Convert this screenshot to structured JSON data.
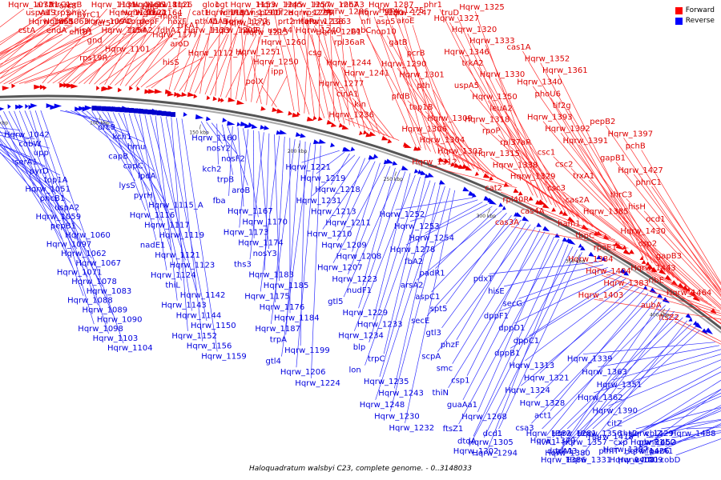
{
  "caption": "Haloquadratum walsbyi C23, complete genome. - 0..3148033",
  "legend": [
    {
      "label": "Forward",
      "color": "#ff0000"
    },
    {
      "label": "Reverse",
      "color": "#0000ff"
    }
  ],
  "ticks": [
    "50 kbp",
    "100 kbp",
    "150 kbp",
    "200 kbp",
    "250 kbp",
    "300 kbp",
    "350 kbp",
    "400 kbp",
    "450 kbp"
  ],
  "forward_labels": [
    "Hqrw_1073",
    "uspA1",
    "Hqrw_1063",
    "cstA",
    "arsA1",
    "trpS",
    "Hqrw_1065",
    "endA",
    "serB",
    "valS",
    "hisB",
    "hisA",
    "thrC1",
    "pheY",
    "Hqrw_1094",
    "orc8",
    "pyrC1",
    "fer5",
    "entB1",
    "gnd",
    "Hqrw_1101",
    "rps19R",
    "Hqrw_1131",
    "Hqrw_1130",
    "copA",
    "Hqrw_1154",
    "Hqrw_1166",
    "Hqrw_1164",
    "nirA2",
    "fdhA2",
    "Hqrw_1126",
    "Hqrw_1122",
    "pepF",
    "fdhA1",
    "Hqrw_1118",
    "truA",
    "hoxF",
    "bat",
    "moaE",
    "trkA1",
    "Hqrw_1177",
    "aroD",
    "Hqrw_1112_A",
    "hisS",
    "trp1",
    "cat1",
    "fbA1",
    "Hqrw_1133",
    "glo1",
    "fdhA3",
    "nthA1",
    "Hqrw_1202",
    "Hqrw_1153",
    "Hqrw_1181",
    "Hqrw_1172",
    "nadR",
    "ogt",
    "Hqrw_1190",
    "hsp20D",
    "Hqrw_1216",
    "Hqrw_1215",
    "Hqrw_1260",
    "Hqrw_1251",
    "Hqrw_1250",
    "ipp",
    "polX",
    "Hqrw_1245",
    "tif2a",
    "mtaP",
    "uspA4",
    "Hqrw_1257",
    "rps27R",
    "prt2",
    "Hqrw_1240",
    "Hqrw_1267",
    "Hqrw_1239",
    "Hqrw_1263",
    "Hqrw_1286",
    "Hqrw_1238",
    "Hqrw_1261",
    "rpl36aR",
    "csg",
    "Hqrw_1244",
    "Hqrw_1241",
    "Hqrw_1277",
    "cinA1",
    "kin",
    "Hqrw_1236",
    "rnhA3",
    "Hqrw_1280",
    "asp5",
    "pabC",
    "Hqrw_1287",
    "Hqrw_1247",
    "nfi",
    "Hqrw_1275",
    "aroE",
    "nop10",
    "gatB",
    "pcrB",
    "Hqrw_1290",
    "Hqrw_1301",
    "pth",
    "pfdB",
    "top1B",
    "Hqrw_1309",
    "Hqrw_1306",
    "Hqrw_1304",
    "Hqrw_1303",
    "Hqrw_1312",
    "phr1",
    "truD",
    "Hqrw_1325",
    "Hqrw_1327",
    "Hqrw_1320",
    "Hqrw_1333",
    "Hqrw_1346",
    "trkA2",
    "Hqrw_1330",
    "uspA5",
    "Hqrw_1350",
    "leuA2",
    "Hqrw_1318",
    "rpoP",
    "rpl37aR",
    "Hqrw_1315",
    "Hqrw_1338",
    "Hqrw_1329",
    "cat2",
    "rpl40R",
    "cas4A",
    "cas3A",
    "cas1A",
    "Hqrw_1352",
    "Hqrw_1361",
    "Hqrw_1340",
    "phoU6",
    "tif2g",
    "Hqrw_1393",
    "Hqrw_1392",
    "Hqrw_1391",
    "csc1",
    "csc2",
    "trxA1",
    "csc3",
    "cas2A",
    "Hqrw_1385",
    "ham1",
    "tbpC",
    "rpoE1",
    "Hqrw_1384",
    "Hqrw_1404",
    "Hqrw_1383",
    "Hqrw_1403",
    "pepB2",
    "Hqrw_1397",
    "pchB",
    "gapB1",
    "Hqrw_1427",
    "phnC1",
    "thrC3",
    "hisH",
    "ocd1",
    "Hqrw_1430",
    "csp2",
    "gapB3",
    "Hqrw_1443",
    "ribE",
    "Hqrw_1464",
    "aubA",
    "ftsZ2"
  ],
  "reverse_labels": [
    "Hqrw_1042",
    "cobW",
    "upp",
    "serA1",
    "pyrD",
    "top1A",
    "Hqrw_1051",
    "pncB1",
    "uspA2",
    "Hqrw_1059",
    "pepB1",
    "Hqrw_1060",
    "Hqrw_1097",
    "Hqrw_1062",
    "Hqrw_1067",
    "Hqrw_1071",
    "Hqrw_1078",
    "Hqrw_1083",
    "Hqrw_1088",
    "Hqrw_1089",
    "Hqrw_1090",
    "Hqrw_1098",
    "Hqrw_1103",
    "Hqrw_1104",
    "orc9",
    "kch1",
    "hmu",
    "capB",
    "capC",
    "lpdA",
    "lysS",
    "pyrH",
    "Hqrw_1115_A",
    "Hqrw_1116",
    "Hqrw_1117",
    "Hqrw_1119",
    "nadE1",
    "Hqrw_1121",
    "Hqrw_1123",
    "Hqrw_1124",
    "thiL",
    "Hqrw_1142",
    "Hqrw_1143",
    "Hqrw_1144",
    "Hqrw_1150",
    "Hqrw_1152",
    "Hqrw_1156",
    "Hqrw_1159",
    "Hqrw_1160",
    "nosY2",
    "nosF2",
    "kch2",
    "trpB",
    "aroB",
    "fba",
    "Hqrw_1167",
    "Hqrw_1170",
    "Hqrw_1173",
    "Hqrw_1174",
    "nosY3",
    "ths3",
    "Hqrw_1183",
    "Hqrw_1185",
    "Hqrw_1175",
    "Hqrw_1176",
    "Hqrw_1184",
    "Hqrw_1187",
    "trpA",
    "Hqrw_1199",
    "gtl4",
    "Hqrw_1206",
    "Hqrw_1224",
    "Hqrw_1221",
    "Hqrw_1219",
    "Hqrw_1218",
    "Hqrw_1231",
    "Hqrw_1213",
    "Hqrw_1211",
    "Hqrw_1210",
    "Hqrw_1209",
    "Hqrw_1208",
    "Hqrw_1207",
    "Hqrw_1223",
    "nudF1",
    "gtl5",
    "Hqrw_1229",
    "Hqrw_1233",
    "Hqrw_1234",
    "blp",
    "trpC",
    "lon",
    "Hqrw_1235",
    "Hqrw_1243",
    "Hqrw_1248",
    "Hqrw_1230",
    "Hqrw_1232",
    "Hqrw_1252",
    "Hqrw_1253",
    "Hqrw_1254",
    "Hqrw_1278",
    "fbA2",
    "padR1",
    "arsA2",
    "aspC1",
    "spt5",
    "secE",
    "gtl3",
    "phzF",
    "scpA",
    "smc",
    "csp1",
    "thiN",
    "guaAa1",
    "Hqrw_1268",
    "ftsZ1",
    "dtdA",
    "Hqrw_1294",
    "Hqrw_1302",
    "Hqrw_1305",
    "dcd1",
    "pdxT",
    "hisE",
    "secG",
    "dppF1",
    "dppD1",
    "dppC1",
    "dppB1",
    "Hqrw_1313",
    "Hqrw_1321",
    "Hqrw_1324",
    "Hqrw_1328",
    "act1",
    "csa3",
    "Hqrw_1379",
    "Hqrw_1380",
    "Hqrw_1382",
    "Hqrw_1386",
    "trkA3",
    "ilvA1",
    "Hqrw_1281",
    "Hqrw_1331",
    "dppA1",
    "Hqrw_1357",
    "Hqrw_1356",
    "Hqrw_1339",
    "Hqrw_1363",
    "Hqrw_1351",
    "Hqrw_1362",
    "Hqrw_1390",
    "citZ",
    "Hqrw_1418",
    "Hqrw_1387",
    "Hqrw_1409",
    "pimT",
    "cxp",
    "Hqrw_1429",
    "Hqrw_1408",
    "Hqrw_1426",
    "phnE1",
    "ths2",
    "uvrD1",
    "parA1",
    "Hqrw_1452",
    "cbiZ",
    "cobD",
    "nfo",
    "cobO",
    "Hqrw_1488"
  ]
}
